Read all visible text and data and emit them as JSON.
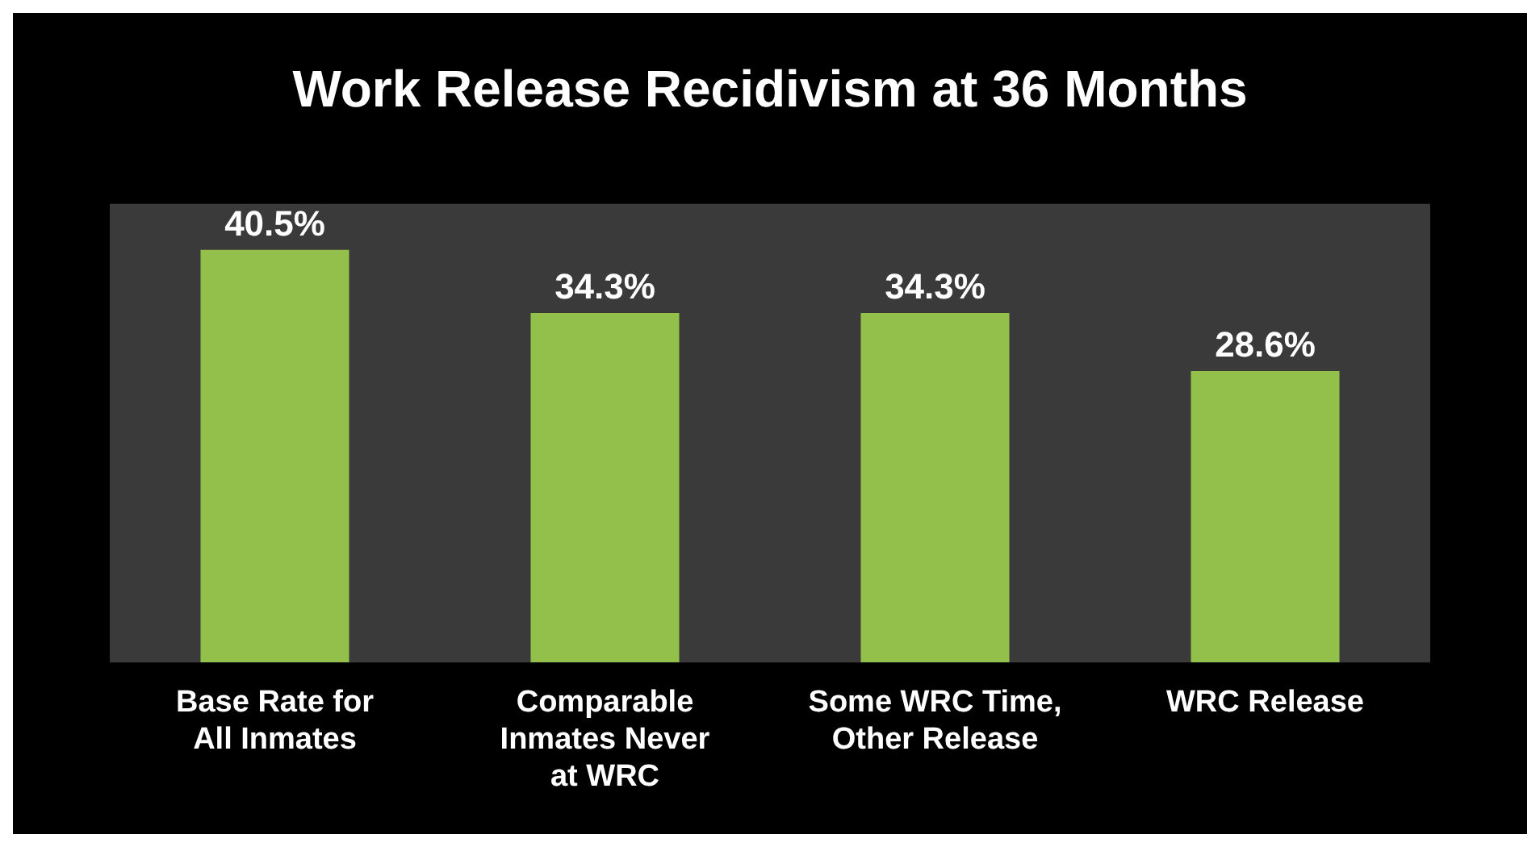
{
  "chart_data": {
    "type": "bar",
    "title": "Work Release Recidivism at 36 Months",
    "categories": [
      "Base Rate for All Inmates",
      "Comparable Inmates Never at WRC",
      "Some WRC Time, Other Release",
      "WRC Release"
    ],
    "values": [
      40.5,
      34.3,
      34.3,
      28.6
    ],
    "value_labels": [
      "40.5%",
      "34.3%",
      "34.3%",
      "28.6%"
    ],
    "color": "#92c04a",
    "grid": false,
    "legend": false
  }
}
